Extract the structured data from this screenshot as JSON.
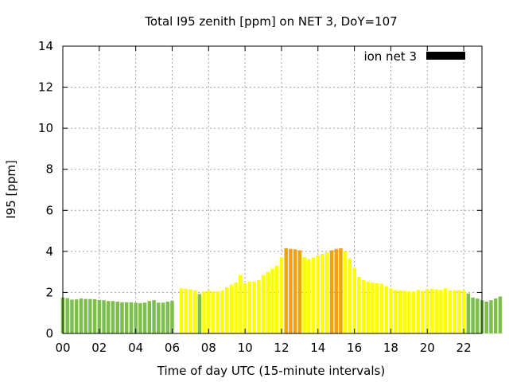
{
  "chart_data": {
    "type": "bar",
    "title": "Total I95 zenith [ppm] on NET 3, DoY=107",
    "xlabel": "Time of day UTC (15-minute intervals)",
    "ylabel": "I95 [ppm]",
    "xlim": [
      0,
      23
    ],
    "ylim": [
      0,
      14
    ],
    "grid": true,
    "legend": {
      "position": "top-right",
      "label": "ion net 3",
      "color": "#000000"
    },
    "x_ticks": [
      "00",
      "02",
      "04",
      "06",
      "08",
      "10",
      "12",
      "14",
      "16",
      "18",
      "20",
      "22"
    ],
    "y_ticks": [
      "0",
      "2",
      "4",
      "6",
      "8",
      "10",
      "12",
      "14"
    ],
    "colors": {
      "green": "#7cbf4a",
      "yellow": "#ffff00",
      "orange": "#f5a20a"
    },
    "series": [
      {
        "values": [
          1.75,
          1.72,
          1.65,
          1.66,
          1.7,
          1.68,
          1.68,
          1.67,
          1.63,
          1.62,
          1.58,
          1.58,
          1.55,
          1.52,
          1.52,
          1.52,
          1.5,
          1.48,
          1.5,
          1.58,
          1.62,
          1.5,
          1.5,
          1.55,
          1.6,
          null,
          2.2,
          2.18,
          2.15,
          2.1,
          1.92,
          2.05,
          2.08,
          2.05,
          2.05,
          2.1,
          2.25,
          2.38,
          2.48,
          2.85,
          2.45,
          2.52,
          2.52,
          2.6,
          2.85,
          3.0,
          3.15,
          3.3,
          3.7,
          4.15,
          4.12,
          4.1,
          4.05,
          3.72,
          3.62,
          3.7,
          3.8,
          3.88,
          3.95,
          4.05,
          4.12,
          4.15,
          4.0,
          3.65,
          3.2,
          2.75,
          2.6,
          2.52,
          2.48,
          2.45,
          2.42,
          2.3,
          2.2,
          2.12,
          2.1,
          2.08,
          2.05,
          2.05,
          2.12,
          2.08,
          2.15,
          2.18,
          2.15,
          2.12,
          2.2,
          2.1,
          2.1,
          2.12,
          2.1,
          1.95,
          1.75,
          1.7,
          1.62,
          1.55,
          1.62,
          1.7,
          1.8,
          null
        ],
        "colors": [
          "green",
          "green",
          "green",
          "green",
          "green",
          "green",
          "green",
          "green",
          "green",
          "green",
          "green",
          "green",
          "green",
          "green",
          "green",
          "green",
          "green",
          "green",
          "green",
          "green",
          "green",
          "green",
          "green",
          "green",
          "green",
          "none",
          "yellow",
          "yellow",
          "yellow",
          "yellow",
          "green",
          "yellow",
          "yellow",
          "yellow",
          "yellow",
          "yellow",
          "yellow",
          "yellow",
          "yellow",
          "yellow",
          "yellow",
          "yellow",
          "yellow",
          "yellow",
          "yellow",
          "yellow",
          "yellow",
          "yellow",
          "yellow",
          "orange",
          "orange",
          "orange",
          "orange",
          "yellow",
          "yellow",
          "yellow",
          "yellow",
          "yellow",
          "yellow",
          "orange",
          "orange",
          "orange",
          "yellow",
          "yellow",
          "yellow",
          "yellow",
          "yellow",
          "yellow",
          "yellow",
          "yellow",
          "yellow",
          "yellow",
          "yellow",
          "yellow",
          "yellow",
          "yellow",
          "yellow",
          "yellow",
          "yellow",
          "yellow",
          "yellow",
          "yellow",
          "yellow",
          "yellow",
          "yellow",
          "yellow",
          "yellow",
          "yellow",
          "yellow",
          "green",
          "green",
          "green",
          "green",
          "green",
          "green",
          "green",
          "green",
          "none"
        ]
      }
    ]
  }
}
